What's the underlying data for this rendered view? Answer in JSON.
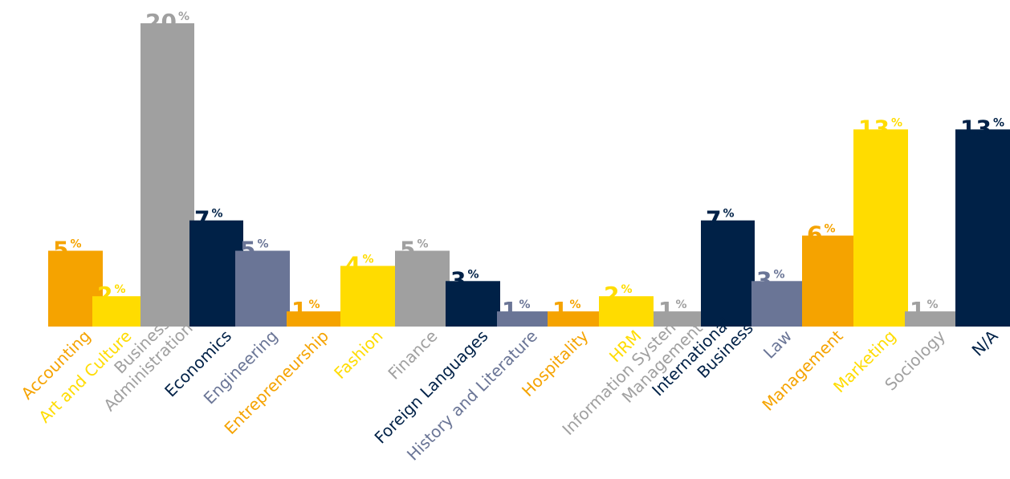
{
  "colors": {
    "orange": "#F5A300",
    "yellow": "#FFDC00",
    "gray": "#A0A0A0",
    "navy": "#002147",
    "slate": "#6A7596"
  },
  "chart_data": {
    "type": "bar",
    "title": "",
    "xlabel": "",
    "ylabel": "",
    "value_suffix": "%",
    "ylim": [
      0,
      20
    ],
    "grid": false,
    "legend": "none",
    "categories": [
      {
        "label": [
          "Accounting"
        ],
        "value": 5,
        "color": "orange"
      },
      {
        "label": [
          "Art and Culture"
        ],
        "value": 2,
        "color": "yellow"
      },
      {
        "label": [
          "Business",
          "Administration"
        ],
        "value": 20,
        "color": "gray"
      },
      {
        "label": [
          "Economics"
        ],
        "value": 7,
        "color": "navy"
      },
      {
        "label": [
          "Engineering"
        ],
        "value": 5,
        "color": "slate"
      },
      {
        "label": [
          "Entrepreneurship"
        ],
        "value": 1,
        "color": "orange"
      },
      {
        "label": [
          "Fashion"
        ],
        "value": 4,
        "color": "yellow"
      },
      {
        "label": [
          "Finance"
        ],
        "value": 5,
        "color": "gray"
      },
      {
        "label": [
          "Foreign Languages"
        ],
        "value": 3,
        "color": "navy"
      },
      {
        "label": [
          "History and Literature"
        ],
        "value": 1,
        "color": "slate"
      },
      {
        "label": [
          "Hospitality"
        ],
        "value": 1,
        "color": "orange"
      },
      {
        "label": [
          "HRM"
        ],
        "value": 2,
        "color": "yellow"
      },
      {
        "label": [
          "Information System",
          "Management"
        ],
        "value": 1,
        "color": "gray"
      },
      {
        "label": [
          "International",
          "Business"
        ],
        "value": 7,
        "color": "navy"
      },
      {
        "label": [
          "Law"
        ],
        "value": 3,
        "color": "slate"
      },
      {
        "label": [
          "Management"
        ],
        "value": 6,
        "color": "orange"
      },
      {
        "label": [
          "Marketing"
        ],
        "value": 13,
        "color": "yellow"
      },
      {
        "label": [
          "Sociology"
        ],
        "value": 1,
        "color": "gray"
      },
      {
        "label": [
          "N/A"
        ],
        "value": 13,
        "color": "navy"
      }
    ]
  }
}
